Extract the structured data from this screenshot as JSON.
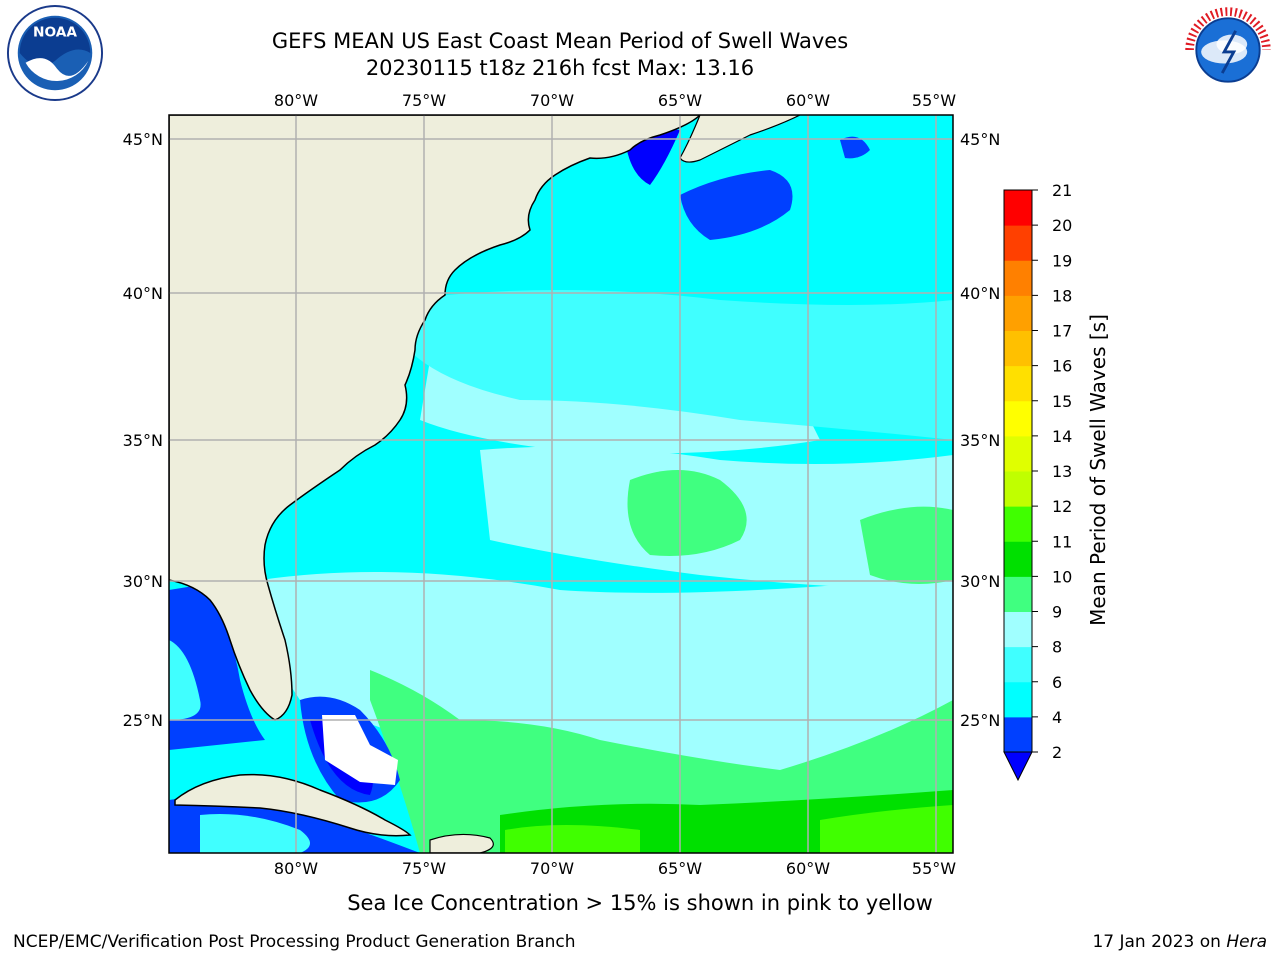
{
  "header": {
    "title_line1": "GEFS MEAN US East Coast Mean Period of Swell Waves",
    "title_line2": "20230115 t18z 216h fcst   Max: 13.16"
  },
  "logos": {
    "left": "noaa-logo",
    "right": "nws-logo"
  },
  "map": {
    "lon_labels": [
      "80°W",
      "75°W",
      "70°W",
      "65°W",
      "60°W",
      "55°W"
    ],
    "lat_labels": [
      "45°N",
      "40°N",
      "35°N",
      "30°N",
      "25°N"
    ],
    "colors": {
      "land": "#eeeedc",
      "ocean_base": "#00ffff",
      "grid": "#b0b0b0"
    }
  },
  "colorbar": {
    "label": "Mean Period of Swell Waves [s]",
    "ticks": [
      "2",
      "4",
      "6",
      "8",
      "9",
      "10",
      "11",
      "12",
      "13",
      "14",
      "15",
      "16",
      "17",
      "18",
      "19",
      "20",
      "21"
    ],
    "colors": [
      "#0040ff",
      "#00ffff",
      "#40ffff",
      "#a0ffff",
      "#40ff80",
      "#00e000",
      "#40ff00",
      "#c0ff00",
      "#e0ff00",
      "#ffff00",
      "#ffe000",
      "#ffc000",
      "#ffa000",
      "#ff8000",
      "#ff4000",
      "#ff0000"
    ],
    "under_color": "#0000ff"
  },
  "footer": {
    "ice_note": "Sea Ice Concentration > 15% is shown in pink to yellow",
    "credit": "NCEP/EMC/Verification Post Processing Product Generation Branch",
    "stamp_date": "17 Jan 2023 on ",
    "stamp_host": "Hera"
  }
}
